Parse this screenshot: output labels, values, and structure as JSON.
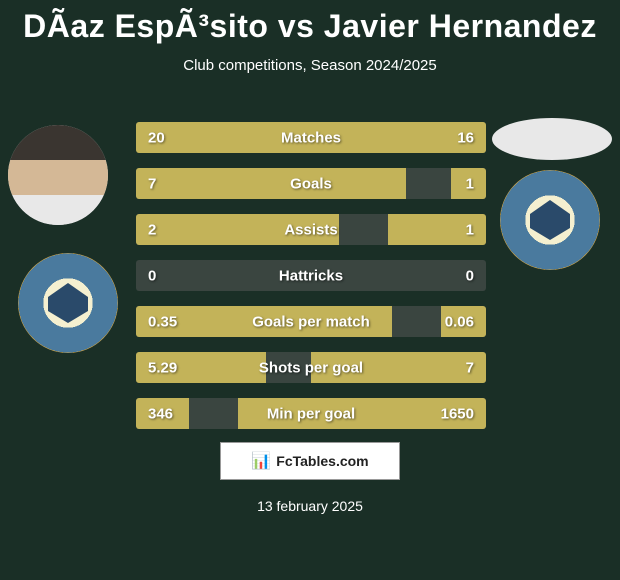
{
  "header": {
    "title": "DÃ­az EspÃ³sito vs Javier Hernandez",
    "subtitle": "Club competitions, Season 2024/2025"
  },
  "players": {
    "left": {
      "name": "Diaz Esposito"
    },
    "right": {
      "name": "Javier Hernandez"
    }
  },
  "stats": {
    "rows": [
      {
        "label": "Matches",
        "left_val": "20",
        "right_val": "16",
        "left_pct": 55,
        "right_pct": 45
      },
      {
        "label": "Goals",
        "left_val": "7",
        "right_val": "1",
        "left_pct": 77,
        "right_pct": 10
      },
      {
        "label": "Assists",
        "left_val": "2",
        "right_val": "1",
        "left_pct": 58,
        "right_pct": 28
      },
      {
        "label": "Hattricks",
        "left_val": "0",
        "right_val": "0",
        "left_pct": 0,
        "right_pct": 0
      },
      {
        "label": "Goals per match",
        "left_val": "0.35",
        "right_val": "0.06",
        "left_pct": 73,
        "right_pct": 13
      },
      {
        "label": "Shots per goal",
        "left_val": "5.29",
        "right_val": "7",
        "left_pct": 37,
        "right_pct": 50
      },
      {
        "label": "Min per goal",
        "left_val": "346",
        "right_val": "1650",
        "left_pct": 15,
        "right_pct": 71
      }
    ],
    "colors": {
      "bar_fill": "#c3b359",
      "bar_bg": "#3a4540",
      "text": "#ffffff"
    }
  },
  "footer": {
    "logo_text": "FcTables.com",
    "date": "13 february 2025"
  },
  "style": {
    "background": "#1a2f26",
    "title_color": "#ffffff"
  }
}
